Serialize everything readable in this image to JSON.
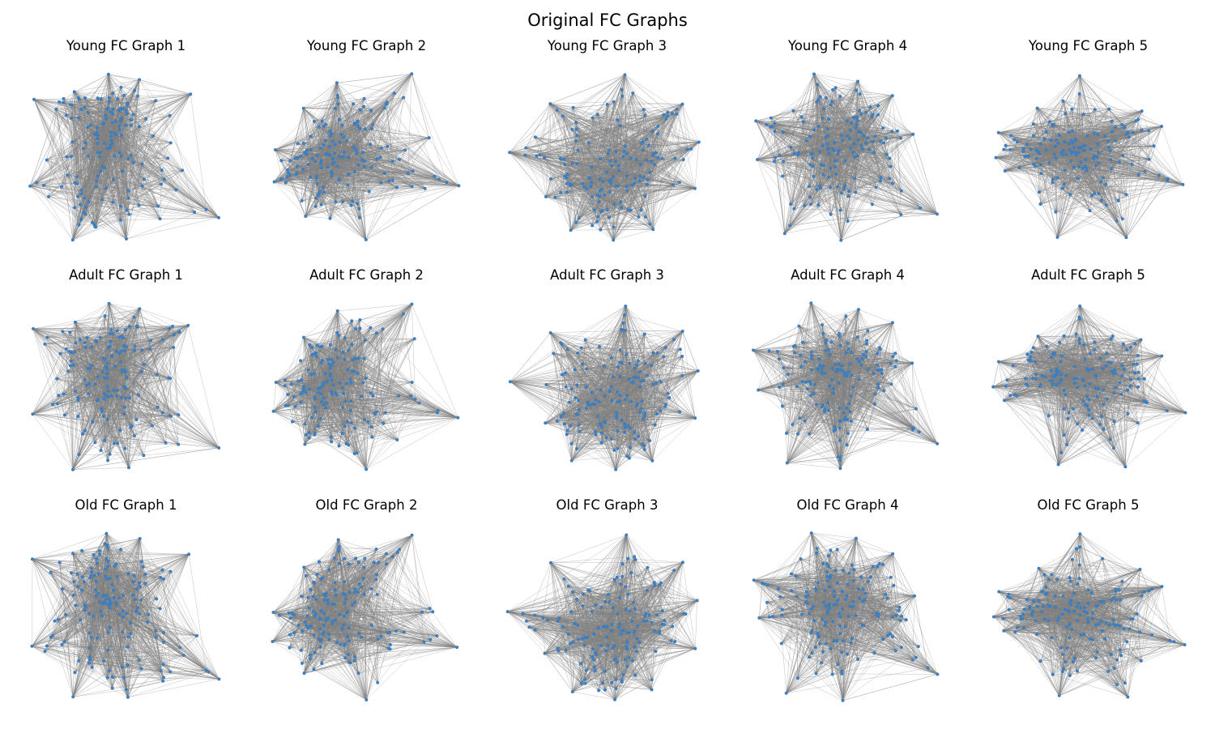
{
  "figure": {
    "title": "Original FC Graphs",
    "colors": {
      "edge": "#808080",
      "node": "#3d7ebf",
      "background": "#ffffff"
    }
  },
  "panels": [
    {
      "title": "Young FC Graph 1",
      "group": "Young",
      "index": 1
    },
    {
      "title": "Young FC Graph 2",
      "group": "Young",
      "index": 2
    },
    {
      "title": "Young FC Graph 3",
      "group": "Young",
      "index": 3
    },
    {
      "title": "Young FC Graph 4",
      "group": "Young",
      "index": 4
    },
    {
      "title": "Young FC Graph 5",
      "group": "Young",
      "index": 5
    },
    {
      "title": "Adult FC Graph 1",
      "group": "Adult",
      "index": 1
    },
    {
      "title": "Adult FC Graph 2",
      "group": "Adult",
      "index": 2
    },
    {
      "title": "Adult FC Graph 3",
      "group": "Adult",
      "index": 3
    },
    {
      "title": "Adult FC Graph 4",
      "group": "Adult",
      "index": 4
    },
    {
      "title": "Adult FC Graph 5",
      "group": "Adult",
      "index": 5
    },
    {
      "title": "Old FC Graph 1",
      "group": "Old",
      "index": 1
    },
    {
      "title": "Old FC Graph 2",
      "group": "Old",
      "index": 2
    },
    {
      "title": "Old FC Graph 3",
      "group": "Old",
      "index": 3
    },
    {
      "title": "Old FC Graph 4",
      "group": "Old",
      "index": 4
    },
    {
      "title": "Old FC Graph 5",
      "group": "Old",
      "index": 5
    }
  ]
}
